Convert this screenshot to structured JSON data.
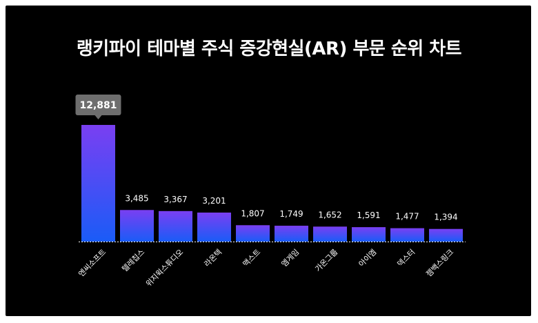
{
  "chart_data": {
    "type": "bar",
    "title": "랭키파이 테마별 주식 증강현실(AR) 부문 순위 차트",
    "categories": [
      "엔씨소프트",
      "텔레칩스",
      "위지윅스튜디오",
      "라온텍",
      "맥스트",
      "엠게임",
      "가온그룹",
      "아이엠",
      "덱스터",
      "젬백스링크"
    ],
    "values": [
      12881,
      3485,
      3367,
      3201,
      1807,
      1749,
      1652,
      1591,
      1477,
      1394
    ],
    "value_labels": [
      "12,881",
      "3,485",
      "3,367",
      "3,201",
      "1,807",
      "1,749",
      "1,652",
      "1,591",
      "1,477",
      "1,394"
    ],
    "highlight_index": 0,
    "ylim": [
      0,
      12881
    ],
    "grid": false,
    "legend": "none",
    "colors": {
      "bar_top": "#7a3ff2",
      "bar_bottom": "#1a5cf7",
      "background": "#000000",
      "text": "#ffffff",
      "callout_bg": "#6e6e6e",
      "baseline": "#ffffff"
    }
  }
}
